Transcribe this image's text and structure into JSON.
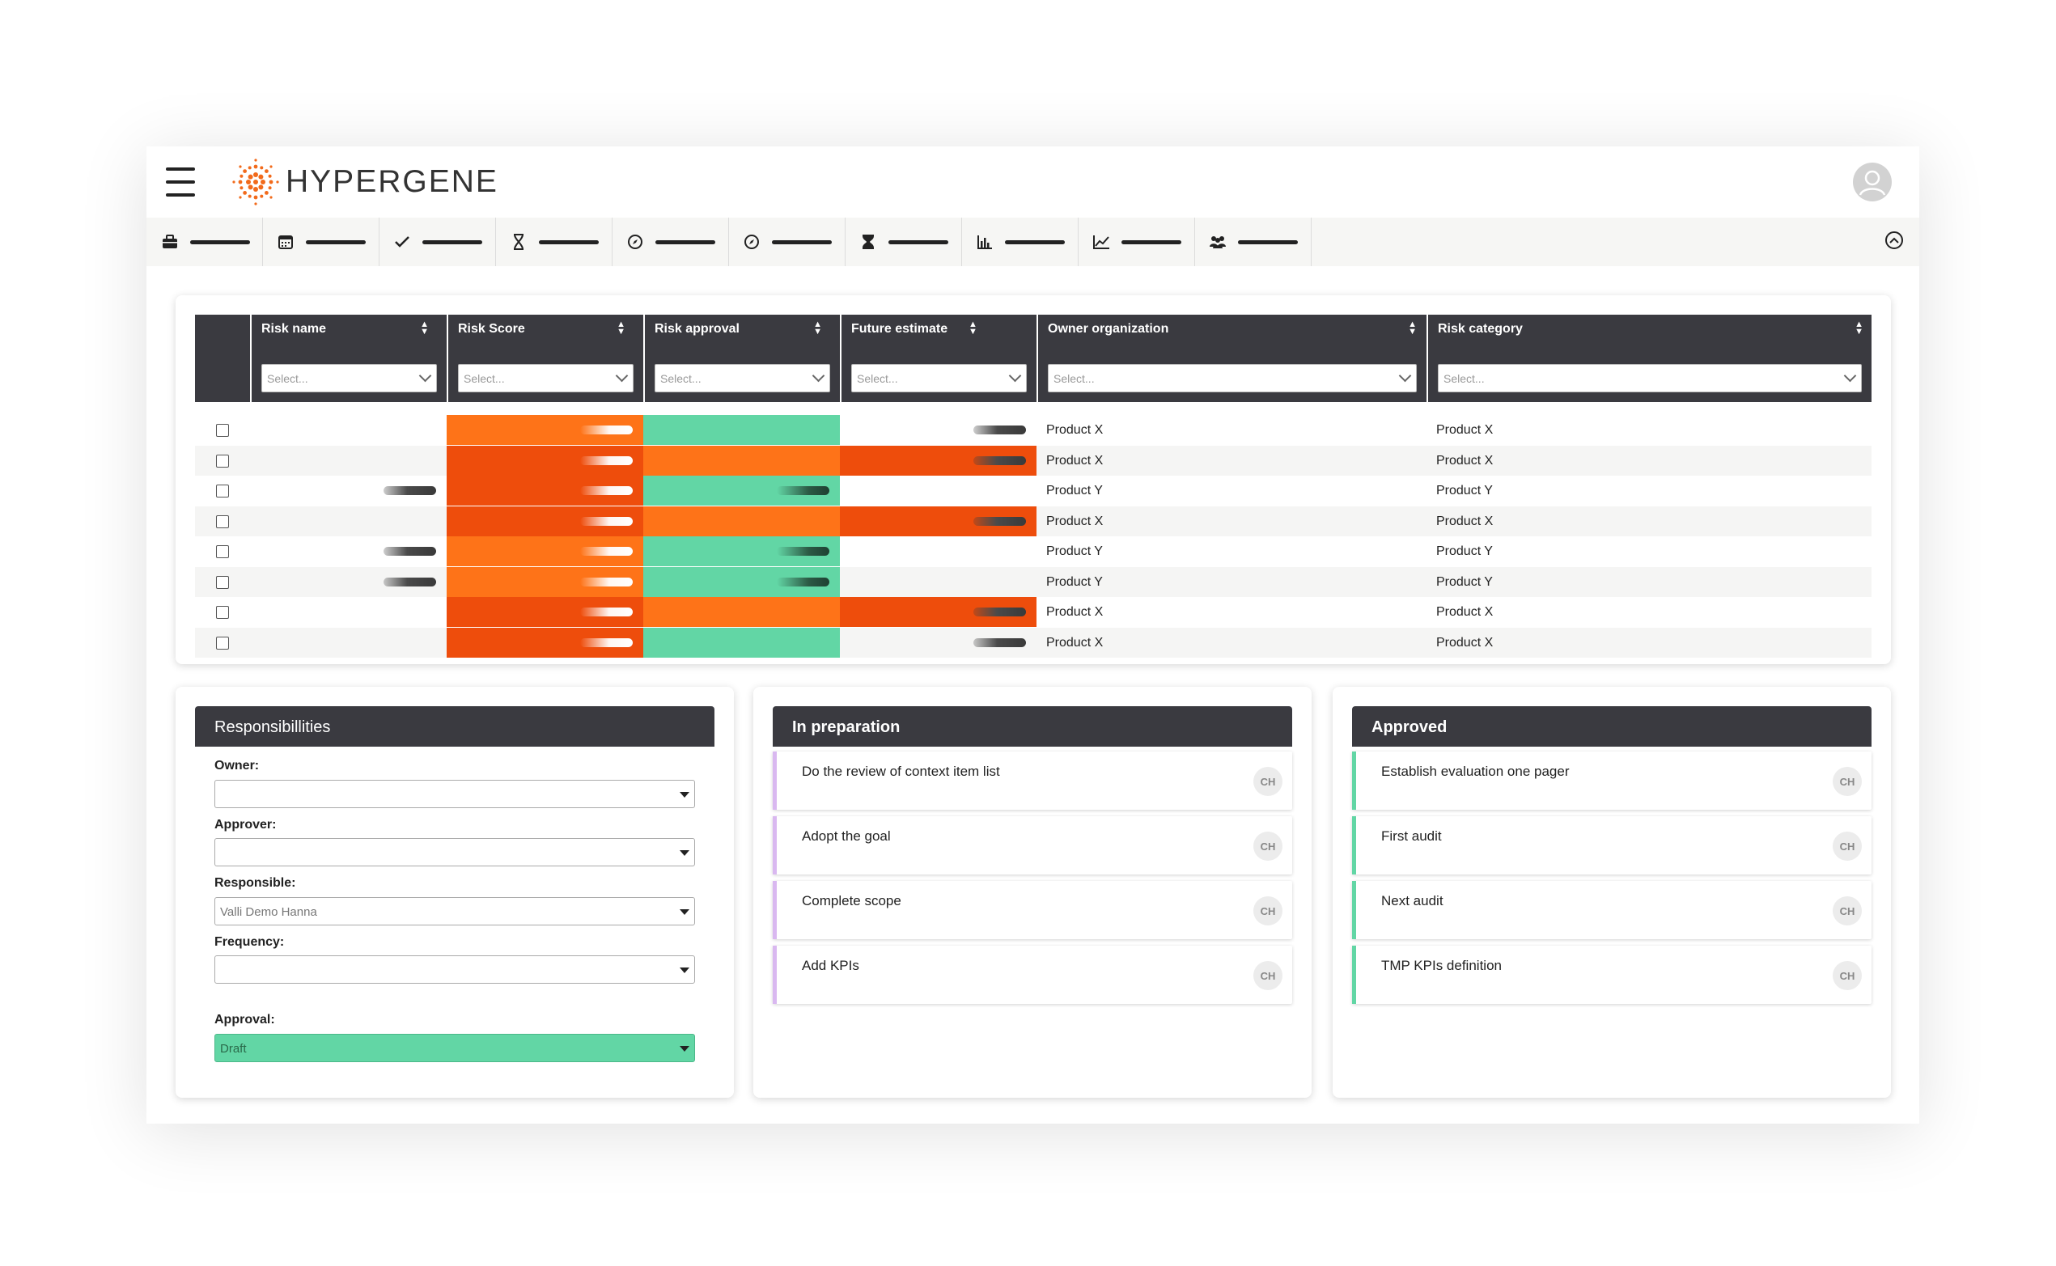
{
  "app": {
    "name": "HYPERGENE"
  },
  "header": {
    "menu_icon": "hamburger-icon",
    "avatar_icon": "user-avatar-icon"
  },
  "toolbar": {
    "items": [
      {
        "icon": "briefcase-icon"
      },
      {
        "icon": "calendar-icon"
      },
      {
        "icon": "check-icon"
      },
      {
        "icon": "hourglass-icon"
      },
      {
        "icon": "compass-icon"
      },
      {
        "icon": "compass-icon"
      },
      {
        "icon": "hourglass-filled-icon"
      },
      {
        "icon": "bar-chart-icon"
      },
      {
        "icon": "line-chart-icon"
      },
      {
        "icon": "team-icon"
      }
    ],
    "collapse_icon": "chevron-up-circle-icon"
  },
  "risk_table": {
    "columns": [
      {
        "label": "Risk name",
        "filter_placeholder": "Select..."
      },
      {
        "label": "Risk Score",
        "filter_placeholder": "Select..."
      },
      {
        "label": "Risk approval",
        "filter_placeholder": "Select..."
      },
      {
        "label": "Future estimate",
        "filter_placeholder": "Select..."
      },
      {
        "label": "Owner organization",
        "filter_placeholder": "Select..."
      },
      {
        "label": "Risk category",
        "filter_placeholder": "Select..."
      }
    ],
    "colors": {
      "orange_dark": "#ee4d0c",
      "orange_light": "#fe7318",
      "green": "#62d6a5"
    },
    "rows": [
      {
        "name_pill": false,
        "score": "orange_light",
        "approval": "green",
        "approval_pill": false,
        "future": "none",
        "owner": "Product X",
        "category": "Product X"
      },
      {
        "name_pill": false,
        "score": "orange_dark",
        "approval": "orange_light",
        "approval_pill": false,
        "future": "orange_dark",
        "owner": "Product X",
        "category": "Product X"
      },
      {
        "name_pill": true,
        "score": "orange_dark",
        "approval": "green",
        "approval_pill": true,
        "future": "none_empty",
        "owner": "Product Y",
        "category": "Product Y"
      },
      {
        "name_pill": false,
        "score": "orange_dark",
        "approval": "orange_light",
        "approval_pill": false,
        "future": "orange_dark",
        "owner": "Product X",
        "category": "Product X"
      },
      {
        "name_pill": true,
        "score": "orange_light",
        "approval": "green",
        "approval_pill": true,
        "future": "none_empty",
        "owner": "Product Y",
        "category": "Product Y"
      },
      {
        "name_pill": true,
        "score": "orange_light",
        "approval": "green",
        "approval_pill": true,
        "future": "none_empty",
        "owner": "Product Y",
        "category": "Product Y"
      },
      {
        "name_pill": false,
        "score": "orange_dark",
        "approval": "orange_light",
        "approval_pill": false,
        "future": "orange_dark",
        "owner": "Product X",
        "category": "Product X"
      },
      {
        "name_pill": false,
        "score": "orange_dark",
        "approval": "green",
        "approval_pill": false,
        "future": "none",
        "owner": "Product X",
        "category": "Product X"
      }
    ]
  },
  "responsibilities": {
    "title": "Responsibillities",
    "fields": [
      {
        "label": "Owner:",
        "value": ""
      },
      {
        "label": "Approver:",
        "value": ""
      },
      {
        "label": "Responsible:",
        "value": "Valli Demo Hanna"
      },
      {
        "label": "Frequency:",
        "value": ""
      },
      {
        "label": "Approval:",
        "value": "Draft"
      }
    ]
  },
  "in_preparation": {
    "title": "In preparation",
    "accent": "#d9b8f0",
    "tasks": [
      {
        "title": "Do the review of context item list",
        "badge": "CH"
      },
      {
        "title": "Adopt the goal",
        "badge": "CH"
      },
      {
        "title": "Complete scope",
        "badge": "CH"
      },
      {
        "title": "Add KPIs",
        "badge": "CH"
      }
    ]
  },
  "approved": {
    "title": "Approved",
    "accent": "#62d6a5",
    "tasks": [
      {
        "title": "Establish evaluation one pager",
        "badge": "CH"
      },
      {
        "title": "First audit",
        "badge": "CH"
      },
      {
        "title": "Next audit",
        "badge": "CH"
      },
      {
        "title": "TMP KPIs definition",
        "badge": "CH"
      }
    ]
  }
}
